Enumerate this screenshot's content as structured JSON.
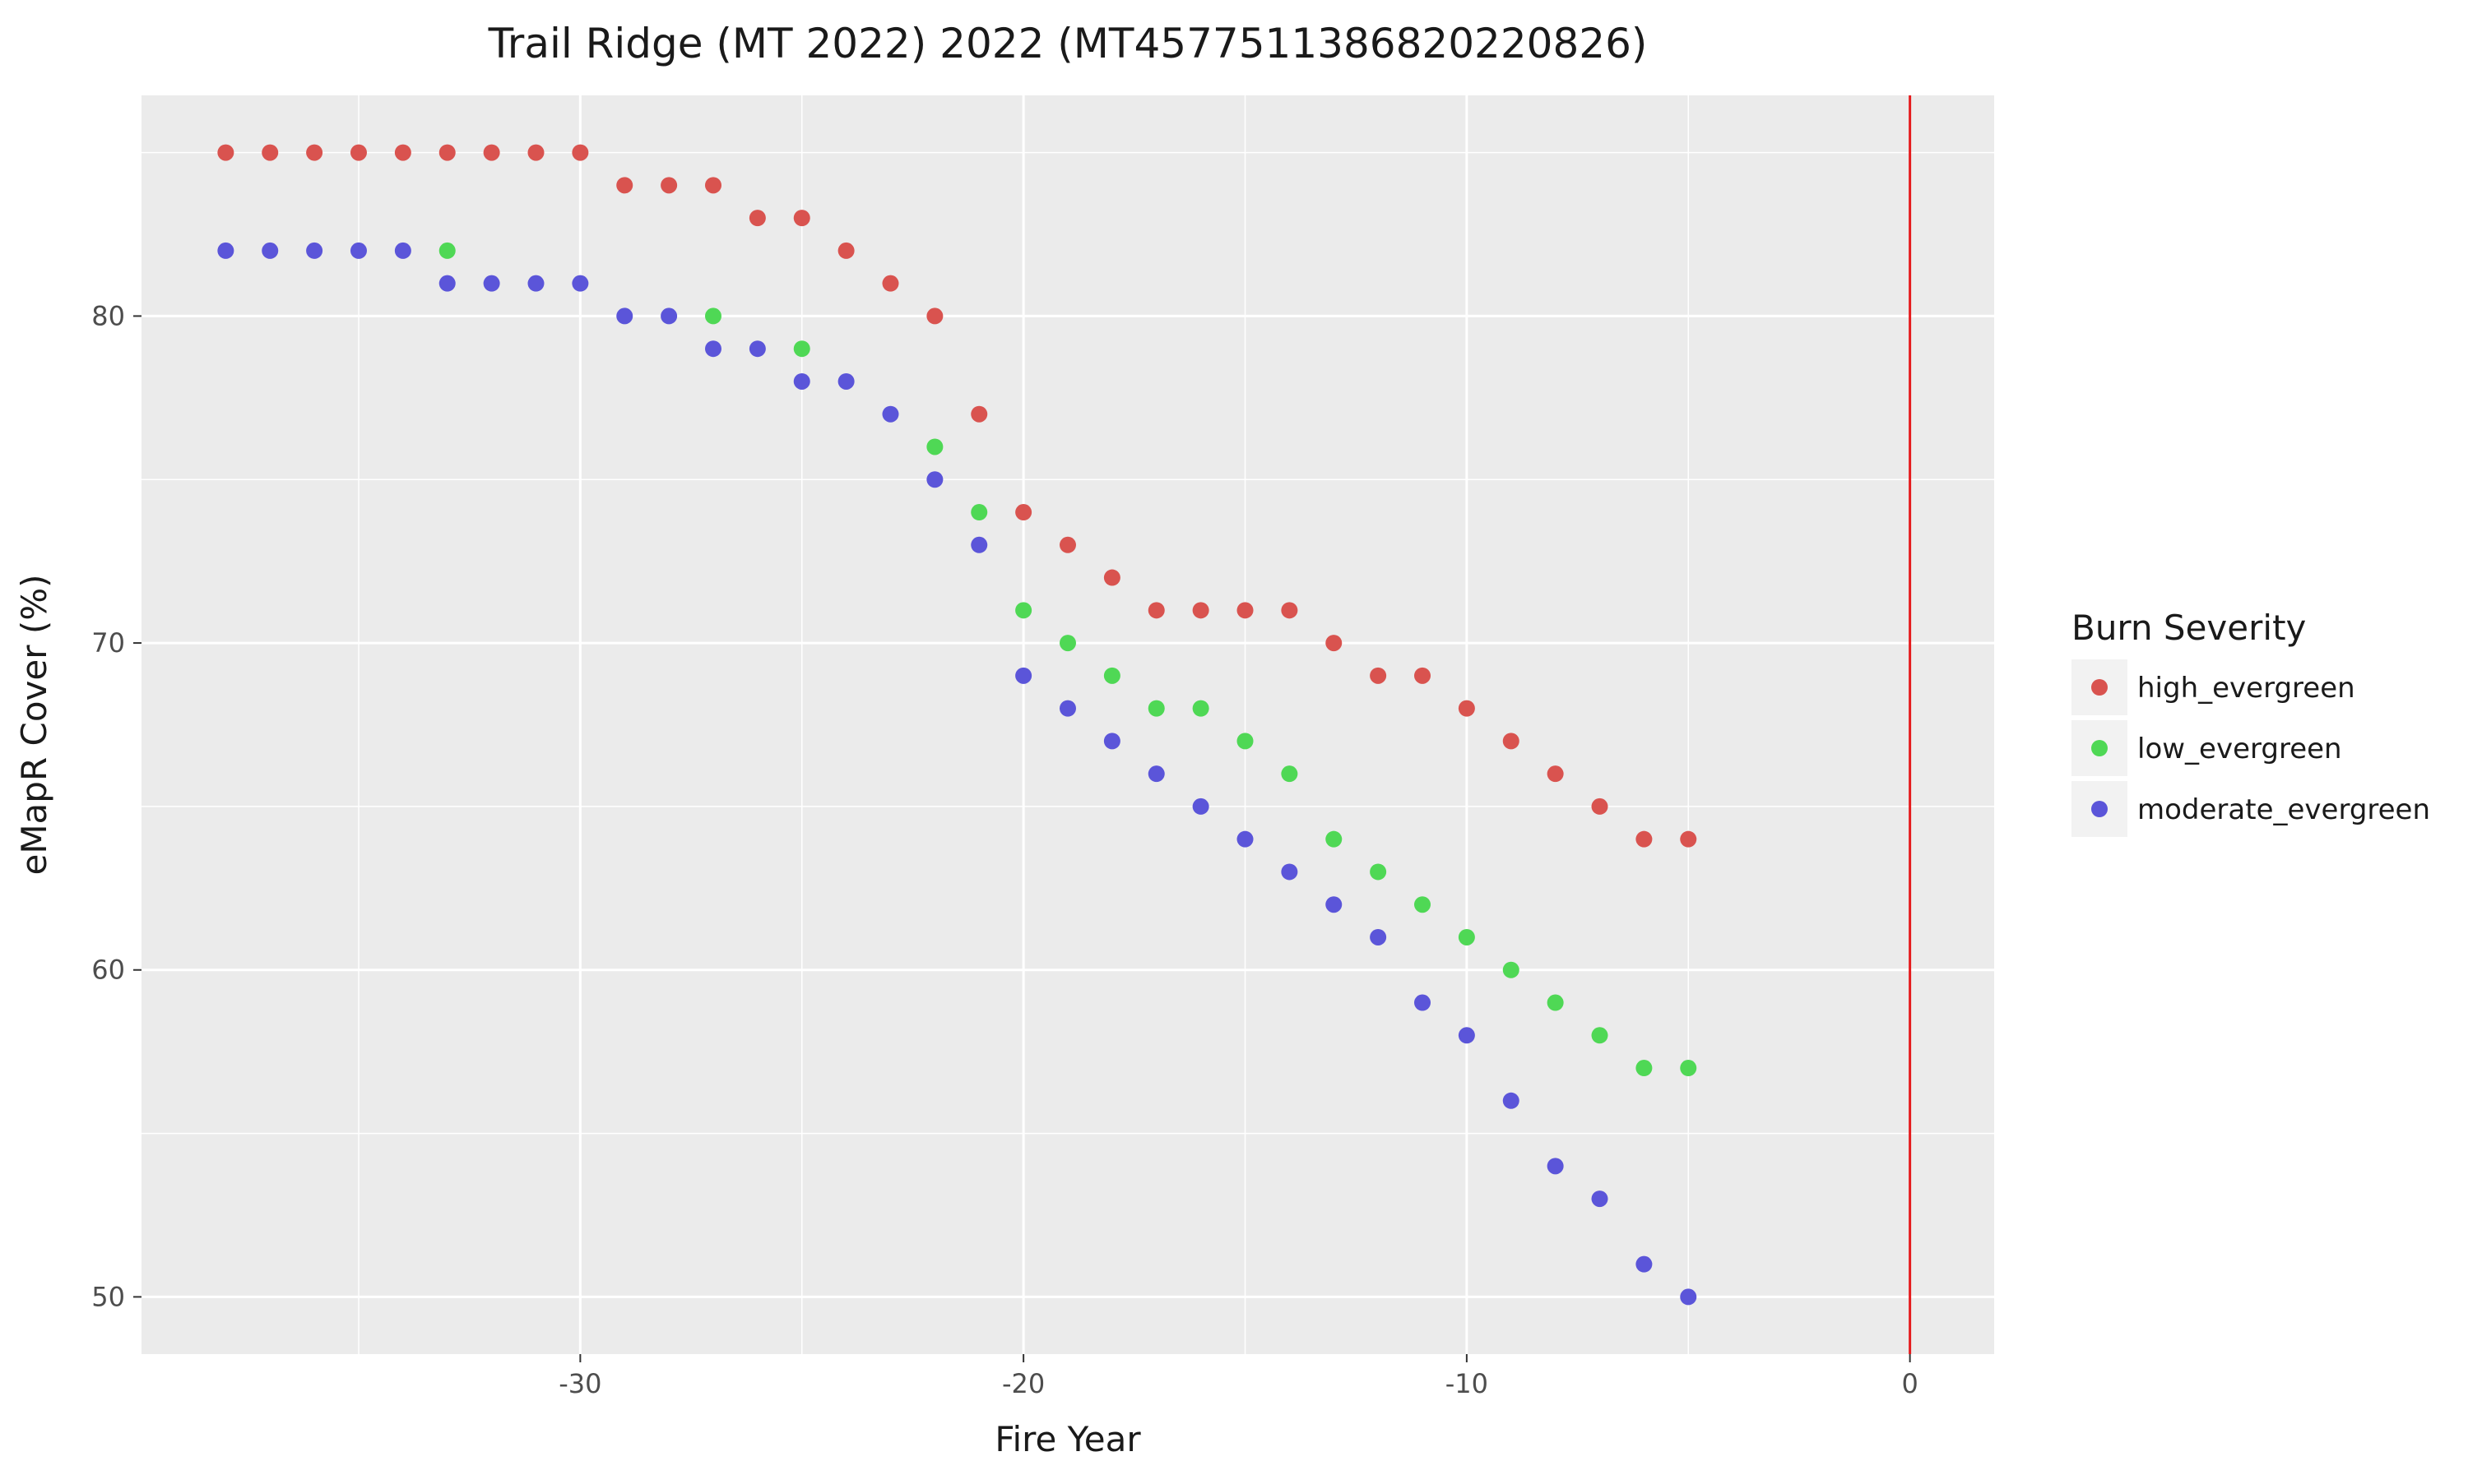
{
  "chart_data": {
    "type": "scatter",
    "title": "Trail Ridge (MT 2022) 2022 (MT4577511386820220826)",
    "xlabel": "Fire Year",
    "ylabel": "eMapR Cover (%)",
    "xlim": [
      -39.9,
      1.9
    ],
    "ylim": [
      48.25,
      86.75
    ],
    "x_ticks": [
      -30,
      -20,
      -10,
      0
    ],
    "x_tick_labels": [
      "-30",
      "-20",
      "-10",
      "0"
    ],
    "y_ticks": [
      50,
      60,
      70,
      80
    ],
    "y_tick_labels": [
      "50",
      "60",
      "70",
      "80"
    ],
    "grid": true,
    "reference_line": {
      "x": 0,
      "color": "#e41a1c"
    },
    "legend": {
      "title": "Burn Severity",
      "position": "right"
    },
    "series": [
      {
        "name": "high_evergreen",
        "color": "#d9534f",
        "x": [
          -38,
          -37,
          -36,
          -35,
          -34,
          -33,
          -32,
          -31,
          -30,
          -29,
          -28,
          -27,
          -26,
          -25,
          -24,
          -23,
          -22,
          -21,
          -20,
          -19,
          -18,
          -17,
          -16,
          -15,
          -14,
          -13,
          -12,
          -11,
          -10,
          -9,
          -8,
          -7,
          -6,
          -5
        ],
        "y": [
          85,
          85,
          85,
          85,
          85,
          85,
          85,
          85,
          85,
          84,
          84,
          84,
          83,
          83,
          82,
          81,
          80,
          77,
          74,
          73,
          72,
          71,
          71,
          71,
          71,
          70,
          69,
          69,
          68,
          67,
          66,
          65,
          64,
          64
        ]
      },
      {
        "name": "low_evergreen",
        "color": "#4fd855",
        "x": [
          -33,
          -27,
          -25,
          -22,
          -21,
          -20,
          -19,
          -18,
          -17,
          -16,
          -15,
          -14,
          -13,
          -12,
          -11,
          -10,
          -9,
          -8,
          -7,
          -6,
          -5
        ],
        "y": [
          82,
          80,
          79,
          76,
          74,
          71,
          70,
          69,
          68,
          68,
          67,
          66,
          64,
          63,
          62,
          61,
          60,
          59,
          58,
          57,
          57
        ]
      },
      {
        "name": "moderate_evergreen",
        "color": "#5b55d9",
        "x": [
          -38,
          -37,
          -36,
          -35,
          -34,
          -33,
          -32,
          -31,
          -30,
          -29,
          -28,
          -27,
          -26,
          -25,
          -24,
          -23,
          -22,
          -21,
          -20,
          -19,
          -18,
          -17,
          -16,
          -15,
          -14,
          -13,
          -12,
          -11,
          -10,
          -9,
          -8,
          -7,
          -6,
          -5
        ],
        "y": [
          82,
          82,
          82,
          82,
          82,
          81,
          81,
          81,
          81,
          80,
          80,
          79,
          79,
          78,
          78,
          77,
          75,
          73,
          69,
          68,
          67,
          66,
          65,
          64,
          63,
          62,
          61,
          59,
          58,
          56,
          54,
          53,
          51,
          50
        ]
      }
    ]
  }
}
